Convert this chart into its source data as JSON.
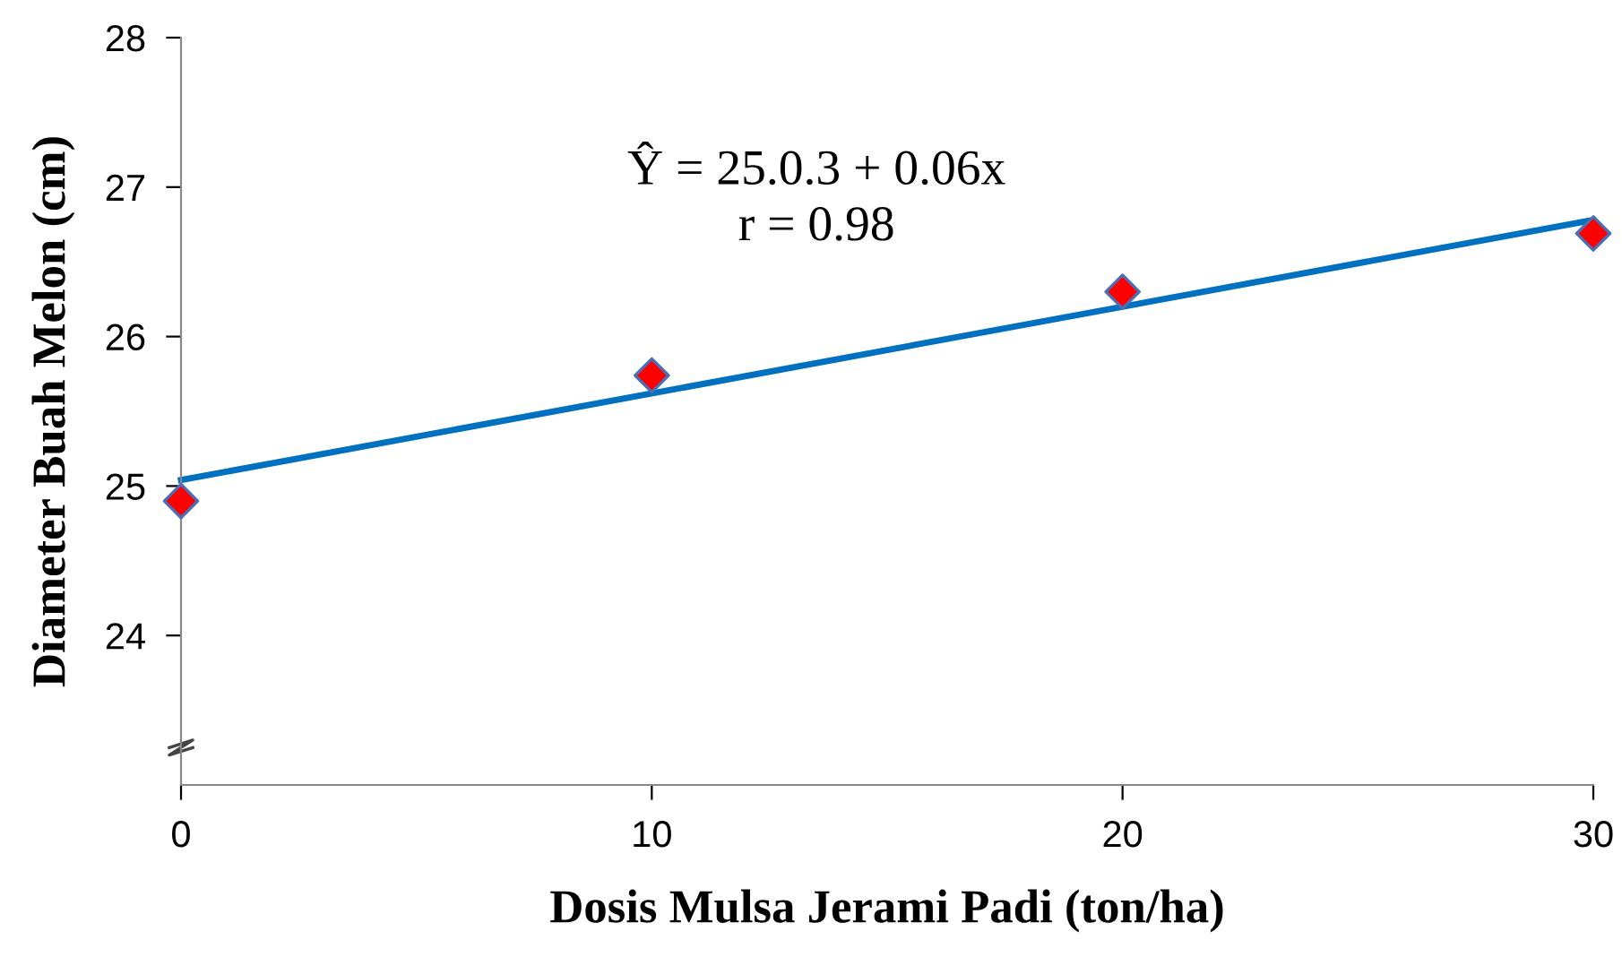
{
  "chart_data": {
    "type": "scatter",
    "xlabel": "Dosis Mulsa Jerami Padi (ton/ha)",
    "ylabel": "Diameter Buah Melon (cm)",
    "x": [
      0,
      10,
      20,
      30
    ],
    "series": [
      {
        "color": "#ff0000",
        "values": [
          24.9,
          25.74,
          26.3,
          26.69
        ],
        "marker": "diamond"
      },
      {
        "type": "line",
        "color": "#0070c0",
        "x": [
          0,
          30
        ],
        "values": [
          25.04,
          26.78
        ],
        "marker": "none",
        "line_style": "solid"
      }
    ],
    "annotations": [
      {
        "text": "Ŷ = 25.0.3 + 0.06x"
      },
      {
        "text": "r = 0.98"
      }
    ],
    "xlim": [
      0,
      30
    ],
    "xticks": [
      0,
      10,
      20,
      30
    ],
    "ylim": [
      23,
      28
    ],
    "yticks": [
      24,
      25,
      26,
      27,
      28
    ],
    "grid": false,
    "legend": false
  }
}
